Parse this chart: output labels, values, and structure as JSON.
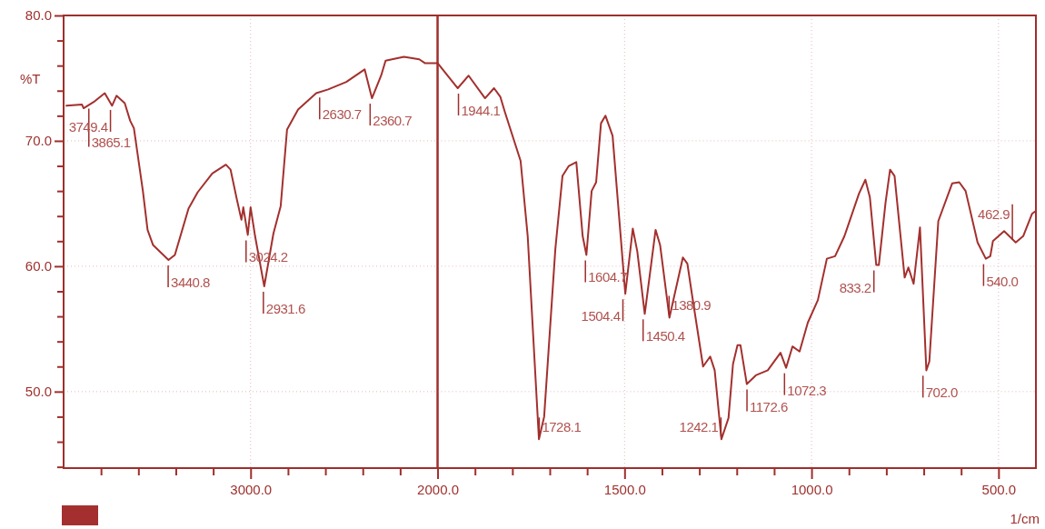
{
  "chart_data": [
    {
      "type": "line",
      "ylabel": "%T",
      "x": [
        3985,
        3902,
        3893,
        3839,
        3780,
        3741,
        3717,
        3673,
        3644,
        3624,
        3576,
        3551,
        3522,
        3439,
        3405,
        3332,
        3283,
        3205,
        3132,
        3107,
        3073,
        3049,
        3039,
        3015,
        3000,
        2976,
        2927,
        2878,
        2839,
        2805,
        2746,
        2649,
        2585,
        2488,
        2390,
        2351,
        2302,
        2278,
        2180,
        2098,
        2068,
        2000
      ],
      "series": [
        {
          "color": "#a3302e",
          "values": [
            72.8,
            72.9,
            72.6,
            73.1,
            73.8,
            72.8,
            73.6,
            73.0,
            71.6,
            71.0,
            66.0,
            62.9,
            61.7,
            60.5,
            60.9,
            64.6,
            65.9,
            67.4,
            68.1,
            67.7,
            65.3,
            63.7,
            64.7,
            62.5,
            64.7,
            62.4,
            58.4,
            62.6,
            64.8,
            70.9,
            72.5,
            73.8,
            74.1,
            74.7,
            75.7,
            73.4,
            75.2,
            76.4,
            76.7,
            76.5,
            76.2,
            76.2
          ]
        }
      ],
      "xlim": [
        4000,
        2000
      ],
      "xticks": [
        {
          "value": 3800,
          "label": null
        },
        {
          "value": 3600,
          "label": null
        },
        {
          "value": 3400,
          "label": null
        },
        {
          "value": 3200,
          "label": null
        },
        {
          "value": 3000,
          "label": "3000.0"
        },
        {
          "value": 2800,
          "label": null
        },
        {
          "value": 2600,
          "label": null
        },
        {
          "value": 2400,
          "label": null
        },
        {
          "value": 2200,
          "label": null
        },
        {
          "value": 2000,
          "label": "2000.0"
        }
      ],
      "line_style": "solid",
      "ylim": [
        43.9,
        80
      ],
      "yticks": [
        {
          "value": 44,
          "label": null
        },
        {
          "value": 46,
          "label": null
        },
        {
          "value": 48,
          "label": null
        },
        {
          "value": 50,
          "label": "50.0"
        },
        {
          "value": 52,
          "label": null
        },
        {
          "value": 54,
          "label": null
        },
        {
          "value": 56,
          "label": null
        },
        {
          "value": 58,
          "label": null
        },
        {
          "value": 60,
          "label": "60.0"
        },
        {
          "value": 62,
          "label": null
        },
        {
          "value": 64,
          "label": null
        },
        {
          "value": 66,
          "label": null
        },
        {
          "value": 68,
          "label": null
        },
        {
          "value": 70,
          "label": "70.0"
        },
        {
          "value": 72,
          "label": null
        },
        {
          "value": 74,
          "label": null
        },
        {
          "value": 76,
          "label": null
        },
        {
          "value": 78,
          "label": null
        },
        {
          "value": 80,
          "label": "80.0"
        }
      ],
      "grid": true,
      "annotations": [
        {
          "text": "3865.1",
          "x": 3865.1,
          "y": 73.0
        },
        {
          "text": "3749.4",
          "x": 3749.4,
          "y": 72.9
        },
        {
          "text": "3440.8",
          "x": 3440.8,
          "y": 60.5
        },
        {
          "text": "3024.2",
          "x": 3024.2,
          "y": 62.5
        },
        {
          "text": "2931.6",
          "x": 2931.6,
          "y": 58.4
        },
        {
          "text": "2630.7",
          "x": 2630.7,
          "y": 73.9
        },
        {
          "text": "2360.7",
          "x": 2360.7,
          "y": 73.4
        }
      ]
    },
    {
      "type": "line",
      "xlabel": "1/cm",
      "tick_labels": "x",
      "x": [
        2000,
        1946,
        1917,
        1873,
        1849,
        1832,
        1820,
        1778,
        1759,
        1729,
        1715,
        1685,
        1666,
        1649,
        1629,
        1612,
        1602,
        1588,
        1576,
        1563,
        1551,
        1532,
        1498,
        1478,
        1466,
        1446,
        1417,
        1405,
        1380,
        1344,
        1332,
        1320,
        1290,
        1271,
        1259,
        1241,
        1222,
        1210,
        1198,
        1190,
        1173,
        1149,
        1117,
        1083,
        1068,
        1051,
        1032,
        1010,
        983,
        959,
        937,
        912,
        873,
        856,
        844,
        827,
        820,
        802,
        790,
        778,
        751,
        741,
        727,
        710,
        693,
        685,
        661,
        624,
        605,
        588,
        556,
        534,
        522,
        515,
        485,
        454,
        434,
        410,
        400
      ],
      "series": [
        {
          "color": "#a3302e",
          "values": [
            76.2,
            74.2,
            75.2,
            73.4,
            74.2,
            73.5,
            72.3,
            68.4,
            62.4,
            46.2,
            48.0,
            61.4,
            67.2,
            68.0,
            68.3,
            62.4,
            60.9,
            66.0,
            66.7,
            71.4,
            72.0,
            70.4,
            57.8,
            63.0,
            61.2,
            56.2,
            62.9,
            61.7,
            55.9,
            60.7,
            60.2,
            57.8,
            52.0,
            52.8,
            51.7,
            46.2,
            47.9,
            52.2,
            53.7,
            53.7,
            50.6,
            51.3,
            51.7,
            53.1,
            51.9,
            53.6,
            53.2,
            55.5,
            57.3,
            60.6,
            60.8,
            62.4,
            65.8,
            66.9,
            65.5,
            60.1,
            60.1,
            65.1,
            67.7,
            67.2,
            59.1,
            59.9,
            58.6,
            63.1,
            51.7,
            52.4,
            63.6,
            66.6,
            66.7,
            66.0,
            61.9,
            60.6,
            60.8,
            62.0,
            62.8,
            61.9,
            62.4,
            64.2,
            64.4
          ]
        }
      ],
      "xlim": [
        2000,
        400
      ],
      "line_style": "solid",
      "xticks": [
        {
          "value": 1900,
          "label": null
        },
        {
          "value": 1800,
          "label": null
        },
        {
          "value": 1700,
          "label": null
        },
        {
          "value": 1600,
          "label": null
        },
        {
          "value": 1500,
          "label": "1500.0"
        },
        {
          "value": 1400,
          "label": null
        },
        {
          "value": 1300,
          "label": null
        },
        {
          "value": 1200,
          "label": null
        },
        {
          "value": 1100,
          "label": null
        },
        {
          "value": 1000,
          "label": "1000.0"
        },
        {
          "value": 900,
          "label": null
        },
        {
          "value": 800,
          "label": null
        },
        {
          "value": 700,
          "label": null
        },
        {
          "value": 600,
          "label": null
        },
        {
          "value": 500,
          "label": "500.0"
        }
      ],
      "ylim": [
        43.9,
        80
      ],
      "yticks": [
        50,
        60,
        70
      ],
      "grid": true,
      "annotations": [
        {
          "text": "1944.1",
          "x": 1944.1,
          "y": 74.2
        },
        {
          "text": "1728.1",
          "x": 1728.1,
          "y": 46.2
        },
        {
          "text": "1604.7",
          "x": 1604.7,
          "y": 60.9
        },
        {
          "text": "1504.4",
          "x": 1504.4,
          "y": 57.8
        },
        {
          "text": "1450.4",
          "x": 1450.4,
          "y": 56.2
        },
        {
          "text": "1380.9",
          "x": 1380.9,
          "y": 55.9
        },
        {
          "text": "1242.1",
          "x": 1242.1,
          "y": 46.2
        },
        {
          "text": "1172.6",
          "x": 1172.6,
          "y": 50.6
        },
        {
          "text": "1072.3",
          "x": 1072.3,
          "y": 51.9
        },
        {
          "text": "833.2",
          "x": 833.2,
          "y": 60.1
        },
        {
          "text": "702.0",
          "x": 702.0,
          "y": 51.7
        },
        {
          "text": "540.0",
          "x": 540.0,
          "y": 60.6
        },
        {
          "text": "462.9",
          "x": 462.9,
          "y": 61.9
        }
      ]
    }
  ]
}
